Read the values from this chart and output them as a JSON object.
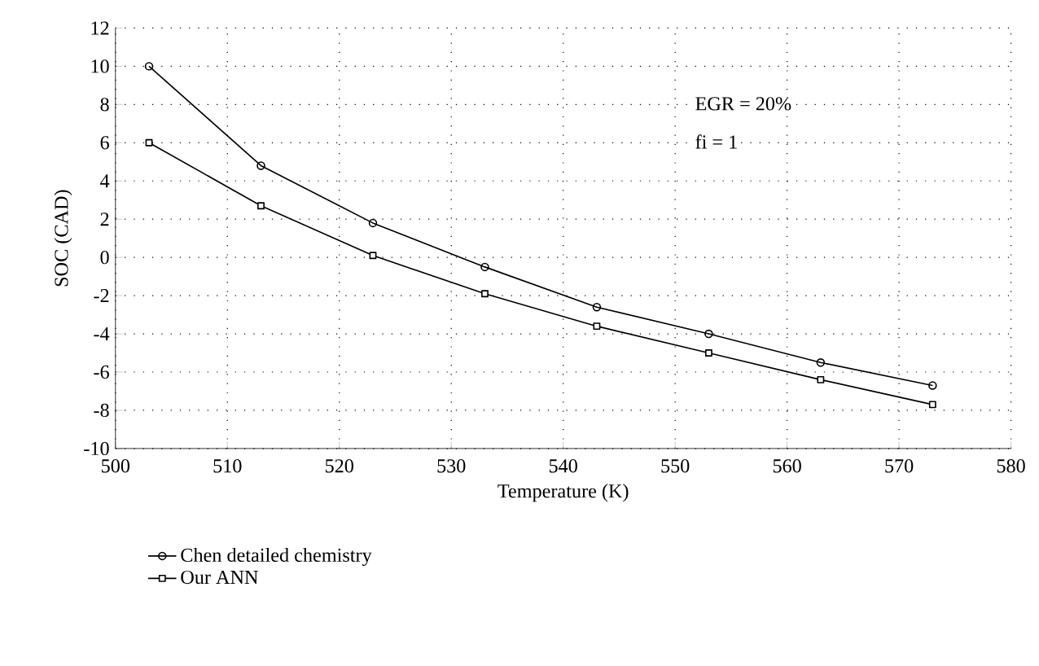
{
  "chart_data": {
    "type": "line",
    "xlabel": "Temperature (K)",
    "ylabel": "SOC (CAD)",
    "x": [
      503,
      513,
      523,
      533,
      543,
      553,
      563,
      573
    ],
    "series": [
      {
        "name": "Chen detailed chemistry",
        "color": "#000000",
        "marker": "circle",
        "values": [
          10,
          4.8,
          1.8,
          -0.5,
          -2.6,
          -4.0,
          -5.5,
          -6.7
        ]
      },
      {
        "name": "Our ANN",
        "color": "#000000",
        "marker": "square",
        "values": [
          6,
          2.7,
          0.1,
          -1.9,
          -3.6,
          -5.0,
          -6.4,
          -7.7
        ]
      }
    ],
    "xlim": [
      500,
      580
    ],
    "ylim": [
      -10,
      12
    ],
    "xticks": [
      500,
      510,
      520,
      530,
      540,
      550,
      560,
      570,
      580
    ],
    "yticks": [
      -10,
      -8,
      -6,
      -4,
      -2,
      0,
      2,
      4,
      6,
      8,
      10,
      12
    ],
    "grid": true,
    "legend": "bottom",
    "line_style": "solid",
    "annotations": [
      "EGR = 20%",
      "fi = 1"
    ]
  }
}
